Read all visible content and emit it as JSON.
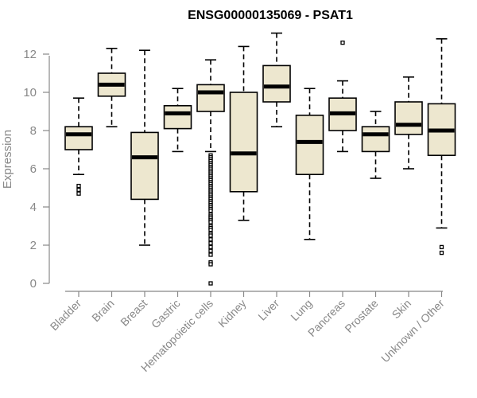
{
  "chart_data": {
    "type": "box",
    "title": "ENSG00000135069 - PSAT1",
    "xlabel": "",
    "ylabel": "Expression",
    "ylim": [
      0,
      13
    ],
    "yticks": [
      0,
      2,
      4,
      6,
      8,
      10,
      12
    ],
    "grid": false,
    "colors": {
      "box_fill": "#ede7cf",
      "box_stroke": "#000000",
      "axis": "#888888"
    },
    "categories": [
      "Bladder",
      "Brain",
      "Breast",
      "Gastric",
      "Hematopoietic cells",
      "Kidney",
      "Liver",
      "Lung",
      "Pancreas",
      "Prostate",
      "Skin",
      "Unknown / Other"
    ],
    "boxes": [
      {
        "min": 5.7,
        "q1": 7.0,
        "median": 7.8,
        "q3": 8.2,
        "max": 9.7,
        "outliers": [
          5.1,
          4.9,
          4.7
        ]
      },
      {
        "min": 8.2,
        "q1": 9.8,
        "median": 10.4,
        "q3": 11.0,
        "max": 12.3,
        "outliers": []
      },
      {
        "min": 2.0,
        "q1": 4.4,
        "median": 6.6,
        "q3": 7.9,
        "max": 12.2,
        "outliers": []
      },
      {
        "min": 6.9,
        "q1": 8.1,
        "median": 8.9,
        "q3": 9.3,
        "max": 10.2,
        "outliers": []
      },
      {
        "min": 6.9,
        "q1": 9.0,
        "median": 10.0,
        "q3": 10.4,
        "max": 11.7,
        "outliers": [
          6.7,
          6.6,
          6.5,
          6.4,
          6.3,
          6.2,
          6.1,
          6.0,
          5.9,
          5.8,
          5.7,
          5.6,
          5.5,
          5.4,
          5.3,
          5.2,
          5.1,
          5.0,
          4.9,
          4.8,
          4.7,
          4.6,
          4.5,
          4.4,
          4.3,
          4.2,
          4.1,
          4.0,
          3.9,
          3.8,
          3.6,
          3.5,
          3.4,
          3.3,
          3.2,
          3.0,
          2.9,
          2.8,
          2.6,
          2.5,
          2.3,
          2.1,
          1.9,
          1.7,
          1.5,
          1.1,
          1.0,
          0.0
        ]
      },
      {
        "min": 3.3,
        "q1": 4.8,
        "median": 6.8,
        "q3": 10.0,
        "max": 12.4,
        "outliers": []
      },
      {
        "min": 8.2,
        "q1": 9.5,
        "median": 10.3,
        "q3": 11.4,
        "max": 13.1,
        "outliers": []
      },
      {
        "min": 2.3,
        "q1": 5.7,
        "median": 7.4,
        "q3": 8.8,
        "max": 10.2,
        "outliers": []
      },
      {
        "min": 6.9,
        "q1": 8.0,
        "median": 8.9,
        "q3": 9.7,
        "max": 10.6,
        "outliers": [
          12.6
        ]
      },
      {
        "min": 5.5,
        "q1": 6.9,
        "median": 7.8,
        "q3": 8.2,
        "max": 9.0,
        "outliers": []
      },
      {
        "min": 6.0,
        "q1": 7.8,
        "median": 8.3,
        "q3": 9.5,
        "max": 10.8,
        "outliers": []
      },
      {
        "min": 2.9,
        "q1": 6.7,
        "median": 8.0,
        "q3": 9.4,
        "max": 12.8,
        "outliers": [
          1.9,
          1.6
        ]
      }
    ]
  }
}
